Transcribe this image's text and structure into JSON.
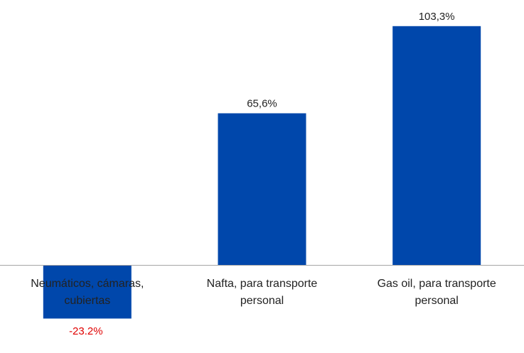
{
  "chart_data": {
    "type": "bar",
    "categories": [
      [
        "Neumáticos, cámaras,",
        "cubiertas"
      ],
      [
        "Nafta, para transporte",
        "personal"
      ],
      [
        "Gas oil, para transporte",
        "personal"
      ]
    ],
    "values": [
      -23.2,
      65.6,
      103.3
    ],
    "value_labels": [
      "-23.2%",
      "65,6%",
      "103,3%"
    ],
    "value_label_colors": [
      "#e00000",
      "#222222",
      "#222222"
    ],
    "bar_color": "#0047ab",
    "axis_color": "#a6a6a6",
    "category_label_color": "#222222",
    "title": "",
    "xlabel": "",
    "ylabel": "",
    "ylim": [
      -23.2,
      103.3
    ],
    "grid": false,
    "legend": "none"
  }
}
